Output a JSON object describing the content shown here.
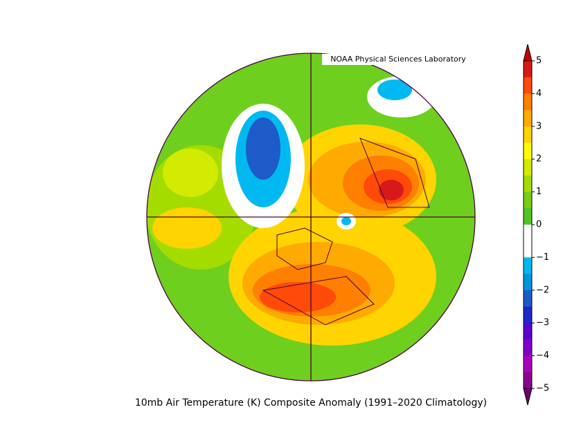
{
  "header": {
    "credit": "NOAA Physical Sciences Laboratory"
  },
  "caption": "10mb Air Temperature (K) Composite Anomaly (1991–2020 Climatology)",
  "colorbar": {
    "ticks": [
      5,
      4,
      3,
      2,
      1,
      0,
      {
        "value": -1,
        "label": "−1"
      },
      {
        "value": -2,
        "label": "−2"
      },
      {
        "value": -3,
        "label": "−3"
      },
      {
        "value": -4,
        "label": "−4"
      },
      {
        "value": -5,
        "label": "−5"
      }
    ],
    "colors": [
      "#d7191c",
      "#ff4a0a",
      "#ff7f00",
      "#ffaa00",
      "#ffd400",
      "#ffff00",
      "#d2eb00",
      "#a5dc00",
      "#78cd14",
      "#50c328",
      "#ffffff",
      "#ffffff",
      "#00b9f0",
      "#0096dc",
      "#1e5ac8",
      "#1e28c8",
      "#5a00d2",
      "#8200c8",
      "#aa00be",
      "#8c008c"
    ],
    "extend_colors": [
      "#c80000",
      "#6e006e"
    ]
  }
}
